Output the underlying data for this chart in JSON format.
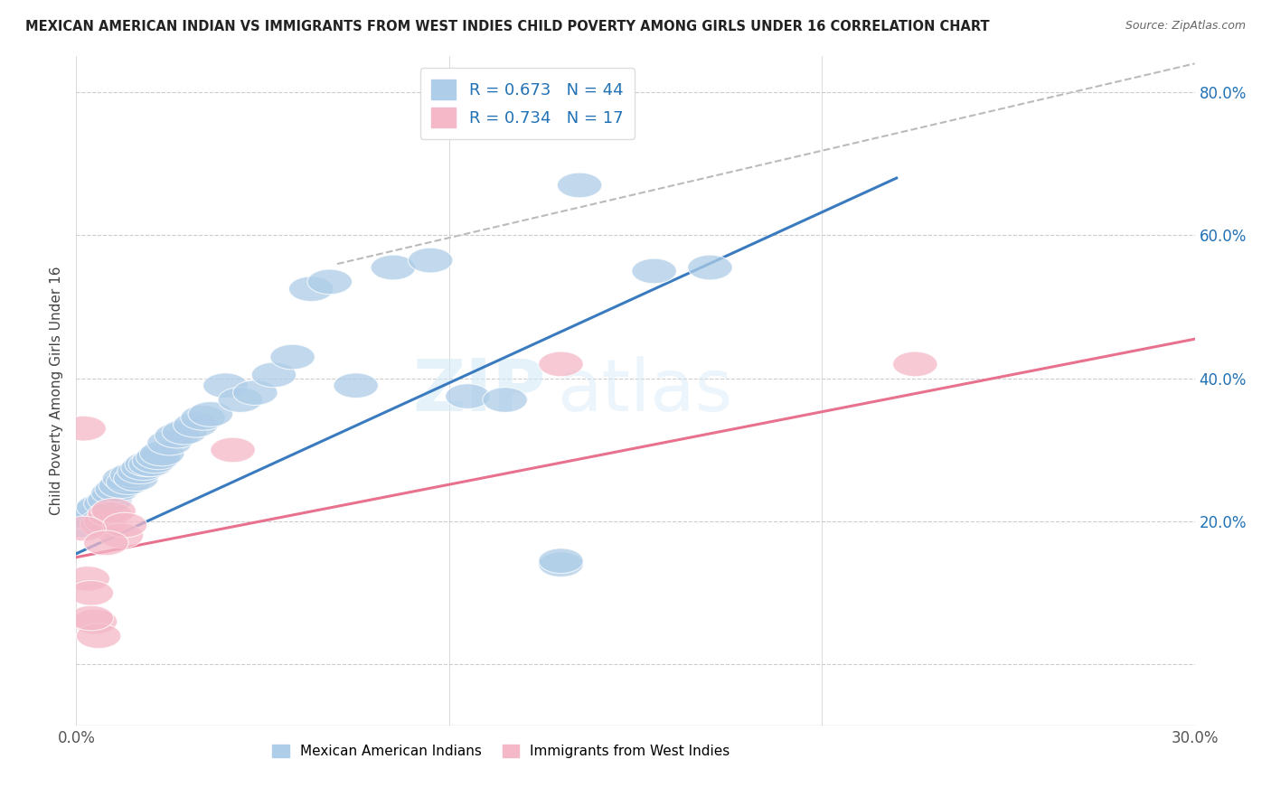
{
  "title": "MEXICAN AMERICAN INDIAN VS IMMIGRANTS FROM WEST INDIES CHILD POVERTY AMONG GIRLS UNDER 16 CORRELATION CHART",
  "source": "Source: ZipAtlas.com",
  "ylabel_label": "Child Poverty Among Girls Under 16",
  "r_blue": 0.673,
  "n_blue": 44,
  "r_pink": 0.734,
  "n_pink": 17,
  "legend_labels": [
    "Mexican American Indians",
    "Immigrants from West Indies"
  ],
  "blue_color": "#aecde8",
  "pink_color": "#f4b8c8",
  "blue_line_color": "#3a7bbf",
  "pink_line_color": "#e8728e",
  "dashed_line_color": "#bbbbbb",
  "watermark_zip": "ZIP",
  "watermark_atlas": "atlas",
  "xlim": [
    0.0,
    0.3
  ],
  "ylim": [
    -0.085,
    0.85
  ],
  "blue_scatter_x": [
    0.002,
    0.004,
    0.005,
    0.006,
    0.007,
    0.008,
    0.009,
    0.01,
    0.011,
    0.012,
    0.013,
    0.014,
    0.015,
    0.016,
    0.017,
    0.018,
    0.019,
    0.02,
    0.021,
    0.022,
    0.023,
    0.025,
    0.027,
    0.029,
    0.032,
    0.034,
    0.036,
    0.04,
    0.044,
    0.048,
    0.053,
    0.058,
    0.063,
    0.068,
    0.075,
    0.085,
    0.095,
    0.105,
    0.115,
    0.135,
    0.155,
    0.17,
    0.13,
    0.13
  ],
  "blue_scatter_y": [
    0.195,
    0.205,
    0.215,
    0.22,
    0.2,
    0.225,
    0.23,
    0.24,
    0.245,
    0.25,
    0.26,
    0.255,
    0.265,
    0.26,
    0.27,
    0.275,
    0.28,
    0.28,
    0.285,
    0.29,
    0.295,
    0.31,
    0.32,
    0.325,
    0.335,
    0.345,
    0.35,
    0.39,
    0.37,
    0.38,
    0.405,
    0.43,
    0.525,
    0.535,
    0.39,
    0.555,
    0.565,
    0.375,
    0.37,
    0.67,
    0.55,
    0.555,
    0.14,
    0.145
  ],
  "pink_scatter_x": [
    0.002,
    0.003,
    0.004,
    0.005,
    0.006,
    0.007,
    0.008,
    0.009,
    0.01,
    0.012,
    0.013,
    0.042,
    0.13,
    0.225,
    0.002,
    0.004,
    0.008
  ],
  "pink_scatter_y": [
    0.33,
    0.12,
    0.1,
    0.06,
    0.04,
    0.195,
    0.2,
    0.21,
    0.215,
    0.18,
    0.195,
    0.3,
    0.42,
    0.42,
    0.19,
    0.065,
    0.17
  ],
  "blue_line_x": [
    0.0,
    0.22
  ],
  "blue_line_y": [
    0.155,
    0.68
  ],
  "pink_line_x": [
    0.0,
    0.3
  ],
  "pink_line_y": [
    0.15,
    0.455
  ],
  "dash_line_x": [
    0.07,
    0.3
  ],
  "dash_line_y": [
    0.56,
    0.84
  ]
}
